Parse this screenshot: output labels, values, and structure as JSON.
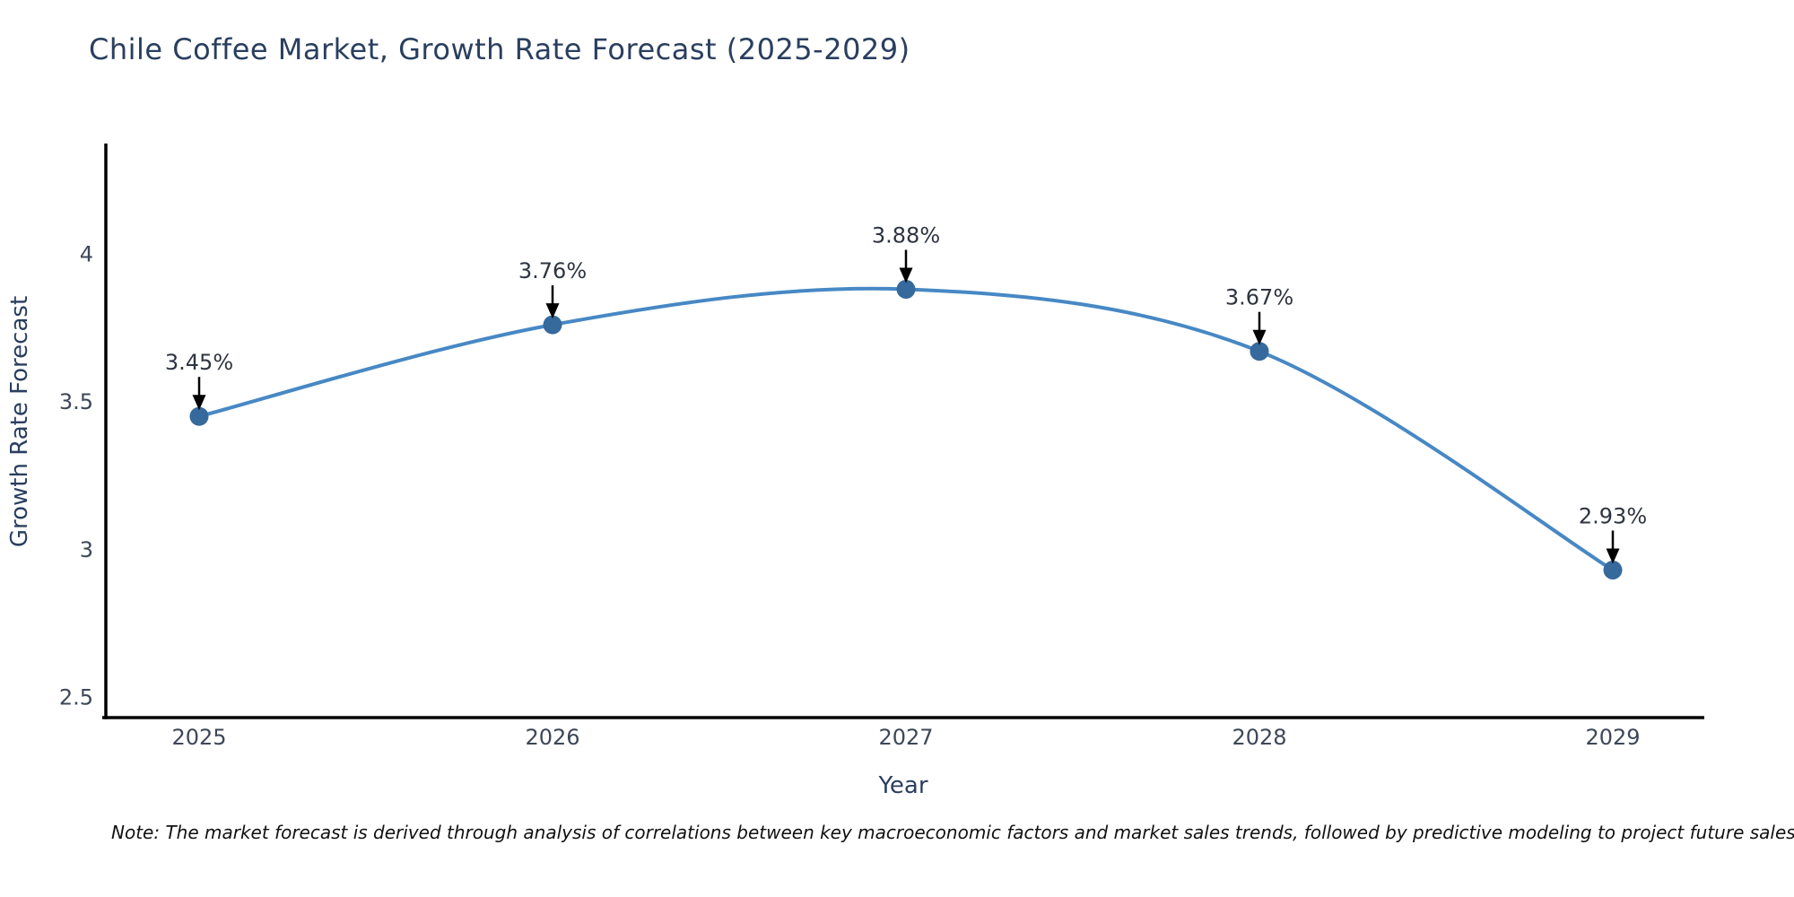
{
  "title": "Chile Coffee Market, Growth Rate Forecast (2025-2029)",
  "note": "Note: The market forecast is derived through analysis of correlations between key macroeconomic factors and market sales trends, followed by predictive modeling to project future sales",
  "chart_data": {
    "type": "line",
    "title": "Chile Coffee Market, Growth Rate Forecast (2025-2029)",
    "categories": [
      "2025",
      "2026",
      "2027",
      "2028",
      "2029"
    ],
    "values": [
      3.45,
      3.76,
      3.88,
      3.67,
      2.93
    ],
    "point_labels": [
      "3.45%",
      "3.76%",
      "3.88%",
      "3.67%",
      "2.93%"
    ],
    "xlabel": "Year",
    "ylabel": "Growth Rate Forecast",
    "yticks": [
      {
        "value": 4,
        "label": "4"
      },
      {
        "value": 3.5,
        "label": "3.5"
      },
      {
        "value": 3,
        "label": "3"
      },
      {
        "value": 2.5,
        "label": "2.5"
      }
    ],
    "ylim": [
      2.43,
      4.37
    ],
    "line_shape": "spline",
    "grid": false,
    "legend": false,
    "annotations_style": "value label with downward arrow onto each marker",
    "colors": {
      "line": "#4788c4",
      "marker": "#36699c",
      "axis": "#000000",
      "arrow": "#000000",
      "title_text": "#2a3f5f",
      "tick_text": "#3d4758",
      "note_text": "#111111"
    }
  }
}
